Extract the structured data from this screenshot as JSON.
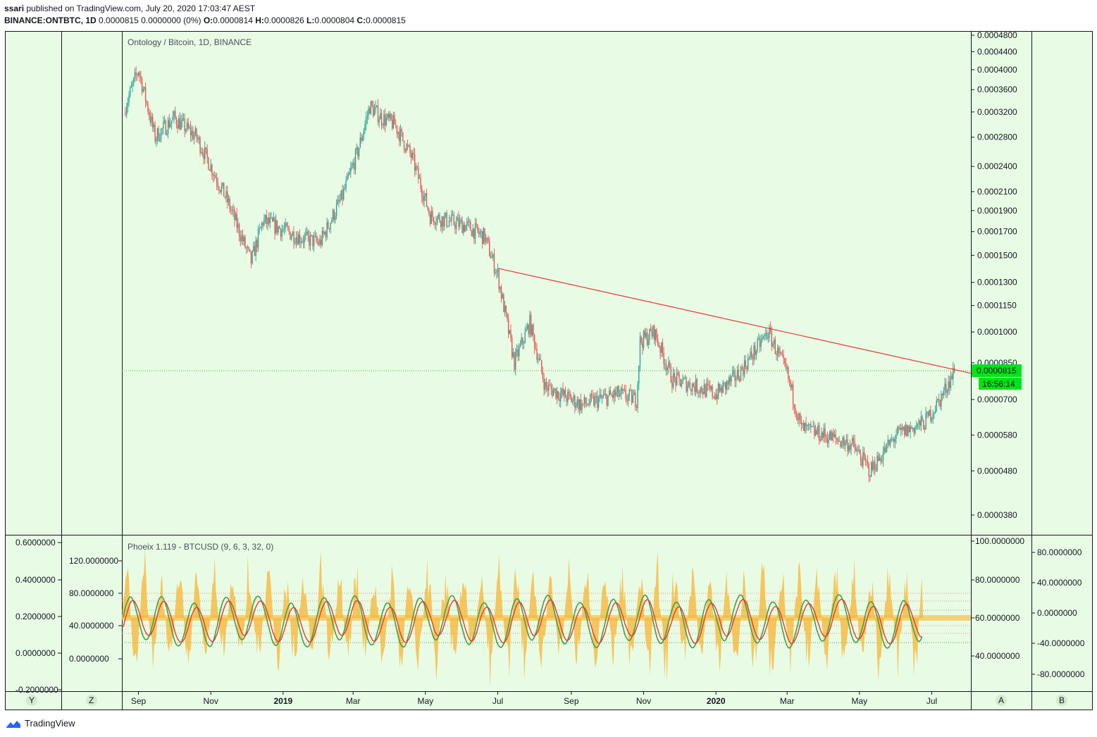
{
  "header": {
    "publisher": "ssari",
    "published_text": " published on TradingView.com, July 20, 2020 17:03:47 AEST",
    "symbol": "BINANCE:ONTBTC, 1D",
    "last": "0.0000815",
    "change": "0.0000000 (0%)",
    "o_label": "O:",
    "o": "0.0000814",
    "h_label": "H:",
    "h": "0.0000826",
    "l_label": "L:",
    "l": "0.0000804",
    "c_label": "C:",
    "c": "0.0000815"
  },
  "colors": {
    "background": "#e8fbe4",
    "up": "#26a69a",
    "down": "#ef5350",
    "trendline": "#e53935",
    "price_tag": "#00e31a",
    "osc_fill": "#f6b93b",
    "osc_green": "#43a047",
    "osc_red": "#e53935"
  },
  "chart_data": [
    {
      "type": "candlestick",
      "title": "Ontology / Bitcoin, 1D, BINANCE",
      "scale": "log",
      "y_ticks": [
        "0.0004800",
        "0.0004400",
        "0.0004000",
        "0.0003600",
        "0.0003200",
        "0.0002800",
        "0.0002400",
        "0.0002100",
        "0.0001900",
        "0.0001700",
        "0.0001500",
        "0.0001300",
        "0.0001150",
        "0.0001000",
        "0.0000850",
        "0.0000700",
        "0.0000580",
        "0.0000480",
        "0.0000380"
      ],
      "x_ticks": [
        "Sep",
        "Nov",
        "2019",
        "Mar",
        "May",
        "Jul",
        "Sep",
        "Nov",
        "2020",
        "Mar",
        "May",
        "Jul"
      ],
      "x_range": [
        "2018-08-21",
        "2020-07-20"
      ],
      "anchors": [
        [
          "2018-08-21",
          0.00033
        ],
        [
          "2018-09-01",
          0.0004
        ],
        [
          "2018-09-15",
          0.00028
        ],
        [
          "2018-10-01",
          0.00031
        ],
        [
          "2018-10-20",
          0.00028
        ],
        [
          "2018-11-15",
          0.0002
        ],
        [
          "2018-12-05",
          0.000145
        ],
        [
          "2018-12-15",
          0.00018
        ],
        [
          "2019-01-15",
          0.000165
        ],
        [
          "2019-02-01",
          0.00016
        ],
        [
          "2019-02-20",
          0.000205
        ],
        [
          "2019-03-05",
          0.00026
        ],
        [
          "2019-03-15",
          0.00033
        ],
        [
          "2019-03-25",
          0.00031
        ],
        [
          "2019-04-05",
          0.0003
        ],
        [
          "2019-04-20",
          0.00025
        ],
        [
          "2019-05-05",
          0.000185
        ],
        [
          "2019-05-20",
          0.00018
        ],
        [
          "2019-06-05",
          0.000175
        ],
        [
          "2019-06-20",
          0.000165
        ],
        [
          "2019-07-01",
          0.000135
        ],
        [
          "2019-07-15",
          8.5e-05
        ],
        [
          "2019-07-28",
          0.000105
        ],
        [
          "2019-08-10",
          7.5e-05
        ],
        [
          "2019-09-10",
          6.8e-05
        ],
        [
          "2019-10-10",
          7.2e-05
        ],
        [
          "2019-10-26",
          7e-05
        ],
        [
          "2019-10-29",
          9.5e-05
        ],
        [
          "2019-11-10",
          0.0001
        ],
        [
          "2019-11-25",
          7.8e-05
        ],
        [
          "2019-12-15",
          7.5e-05
        ],
        [
          "2020-01-01",
          7.2e-05
        ],
        [
          "2020-01-20",
          8e-05
        ],
        [
          "2020-02-14",
          0.0001
        ],
        [
          "2020-03-01",
          8e-05
        ],
        [
          "2020-03-13",
          6e-05
        ],
        [
          "2020-04-01",
          5.8e-05
        ],
        [
          "2020-04-25",
          5.5e-05
        ],
        [
          "2020-05-10",
          4.8e-05
        ],
        [
          "2020-06-01",
          5.8e-05
        ],
        [
          "2020-06-25",
          6.2e-05
        ],
        [
          "2020-07-08",
          7e-05
        ],
        [
          "2020-07-20",
          8.15e-05
        ]
      ],
      "last_price": "0.0000815",
      "countdown": "16:56:14",
      "trendline": [
        [
          "2019-07-01",
          0.00014
        ],
        [
          "2020-07-20",
          8.2e-05
        ]
      ]
    },
    {
      "type": "line",
      "title": "Phoeix 1.119 - BTCUSD (9, 6, 3, 32, 0)",
      "left_axis_outer": [
        "0.6000000",
        "0.4000000",
        "0.2000000",
        "0.0000000",
        "-0.2000000"
      ],
      "left_axis_inner": [
        "120.0000000",
        "80.0000000",
        "40.0000000",
        "0.0000000"
      ],
      "right_axis_inner": [
        "100.0000000",
        "80.0000000",
        "60.0000000",
        "40.0000000"
      ],
      "right_axis_outer": [
        "80.0000000",
        "40.0000000",
        "0.0000000",
        "-40.0000000",
        "-80.0000000"
      ],
      "series": [
        {
          "name": "fill"
        },
        {
          "name": "fast"
        },
        {
          "name": "slow"
        }
      ]
    }
  ],
  "toolbar": {
    "y": "Y",
    "z": "Z",
    "a": "A",
    "b": "B"
  },
  "footer": {
    "brand": "TradingView"
  }
}
